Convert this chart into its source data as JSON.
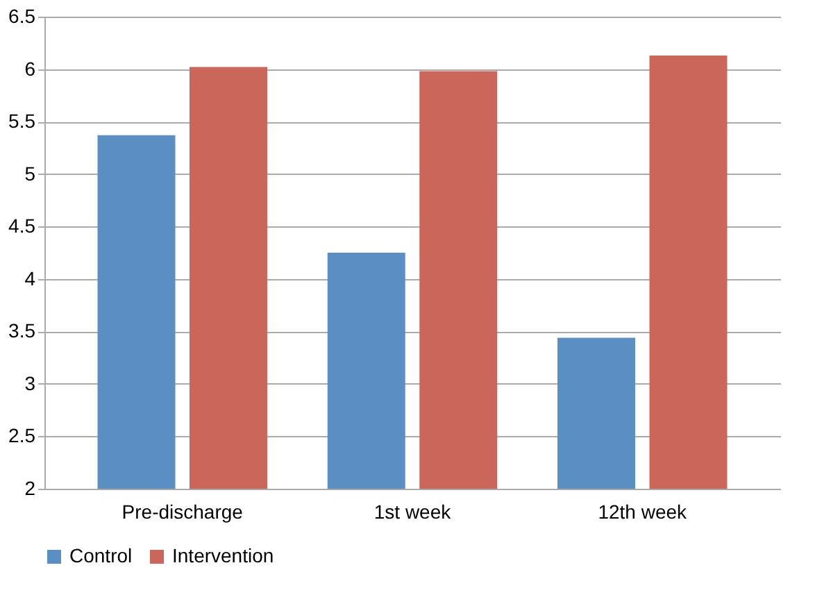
{
  "chart_data": {
    "type": "bar",
    "categories": [
      "Pre-discharge",
      "1st week",
      "12th week"
    ],
    "series": [
      {
        "name": "Control",
        "color": "#5b8fc4",
        "values": [
          5.37,
          4.25,
          3.44
        ]
      },
      {
        "name": "Intervention",
        "color": "#cb665b",
        "values": [
          6.02,
          5.98,
          6.13
        ]
      }
    ],
    "ylim": [
      2,
      6.5
    ],
    "yticks": [
      2,
      2.5,
      3,
      3.5,
      4,
      4.5,
      5,
      5.5,
      6,
      6.5
    ],
    "grid": "y",
    "legend": "bottom"
  }
}
